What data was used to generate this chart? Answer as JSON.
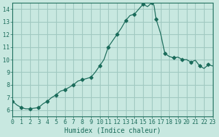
{
  "xlabel": "Humidex (Indice chaleur)",
  "ylabel": "",
  "background_color": "#c8e8e0",
  "grid_color": "#a0c8c0",
  "line_color": "#1a6b5a",
  "marker_color": "#1a6b5a",
  "xlim": [
    0,
    23
  ],
  "ylim": [
    5.5,
    14.5
  ],
  "yticks": [
    6,
    7,
    8,
    9,
    10,
    11,
    12,
    13,
    14
  ],
  "xticks": [
    0,
    1,
    2,
    3,
    4,
    5,
    6,
    7,
    8,
    9,
    10,
    11,
    12,
    13,
    14,
    15,
    16,
    17,
    18,
    19,
    20,
    21,
    22,
    23
  ],
  "x": [
    0,
    0.5,
    1,
    1.5,
    2,
    2.5,
    3,
    3.5,
    4,
    4.5,
    5,
    5.5,
    6,
    6.5,
    7,
    7.5,
    8,
    8.5,
    9,
    9.5,
    10,
    10.5,
    11,
    11.5,
    12,
    12.5,
    13,
    13.5,
    14,
    14.5,
    15,
    15.5,
    16,
    16.25,
    16.5,
    17,
    17.5,
    18,
    18.5,
    19,
    19.5,
    20,
    20.5,
    21,
    21.5,
    22,
    22.5,
    23
  ],
  "y": [
    6.7,
    6.4,
    6.2,
    6.1,
    6.1,
    6.15,
    6.2,
    6.5,
    6.7,
    7.0,
    7.2,
    7.5,
    7.6,
    7.8,
    8.0,
    8.3,
    8.4,
    8.5,
    8.6,
    9.0,
    9.5,
    10.0,
    11.0,
    11.5,
    12.0,
    12.5,
    13.1,
    13.5,
    13.6,
    14.0,
    14.4,
    14.2,
    14.5,
    14.3,
    13.2,
    12.1,
    10.5,
    10.25,
    10.15,
    10.2,
    10.0,
    10.0,
    9.8,
    9.95,
    9.5,
    9.3,
    9.6,
    9.5
  ],
  "marker_indices": [
    0,
    2,
    4,
    6,
    8,
    10,
    12,
    14,
    16,
    18,
    20,
    22,
    24,
    26,
    28,
    30,
    32,
    34,
    36,
    38,
    40,
    42,
    44,
    46
  ]
}
